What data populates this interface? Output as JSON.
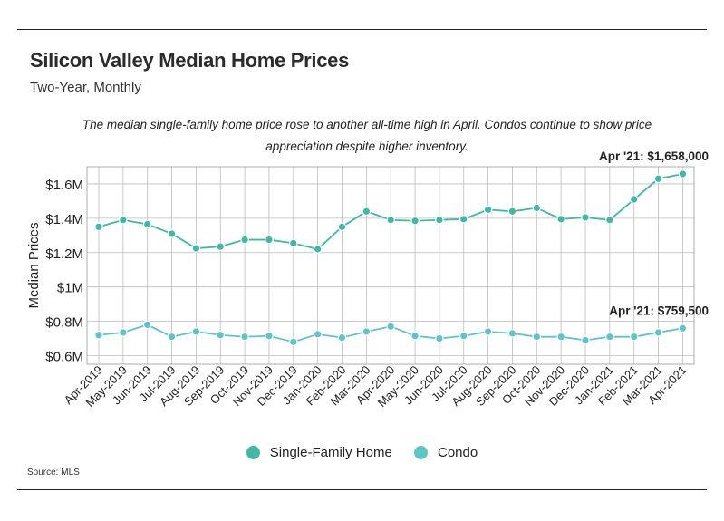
{
  "header": {
    "title": "Silicon Valley Median Home Prices",
    "subtitle": "Two-Year, Monthly",
    "annotation": "The median single-family home price rose to another all-time high in April. Condos continue to show price appreciation despite higher inventory."
  },
  "source": "Source:  MLS",
  "chart_data": {
    "type": "line",
    "title": "Silicon Valley Median Home Prices",
    "xlabel": "",
    "ylabel": "Median Prices",
    "ylim": [
      550000,
      1700000
    ],
    "yticks": [
      600000,
      800000,
      1000000,
      1200000,
      1400000,
      1600000
    ],
    "ytick_labels": [
      "$0.6M",
      "$0.8M",
      "$1M",
      "$1.2M",
      "$1.4M",
      "$1.6M"
    ],
    "grid": true,
    "legend_position": "bottom",
    "categories": [
      "Apr-2019",
      "May-2019",
      "Jun-2019",
      "Jul-2019",
      "Aug-2019",
      "Sep-2019",
      "Oct-2019",
      "Nov-2019",
      "Dec-2019",
      "Jan-2020",
      "Feb-2020",
      "Mar-2020",
      "Apr-2020",
      "May-2020",
      "Jun-2020",
      "Jul-2020",
      "Aug-2020",
      "Sep-2020",
      "Oct-2020",
      "Nov-2020",
      "Dec-2020",
      "Jan-2021",
      "Feb-2021",
      "Mar-2021",
      "Apr-2021"
    ],
    "series": [
      {
        "name": "Single-Family Home",
        "color": "#3fb8a4",
        "values": [
          1350000,
          1390000,
          1365000,
          1310000,
          1225000,
          1235000,
          1275000,
          1275000,
          1255000,
          1220000,
          1350000,
          1440000,
          1390000,
          1385000,
          1390000,
          1395000,
          1450000,
          1440000,
          1460000,
          1395000,
          1405000,
          1390000,
          1510000,
          1630000,
          1658000
        ]
      },
      {
        "name": "Condo",
        "color": "#5ec4c8",
        "values": [
          720000,
          735000,
          780000,
          710000,
          740000,
          720000,
          710000,
          715000,
          680000,
          725000,
          705000,
          740000,
          770000,
          715000,
          700000,
          715000,
          740000,
          730000,
          710000,
          710000,
          690000,
          710000,
          710000,
          735000,
          759500
        ]
      }
    ],
    "annotations": [
      {
        "series": "Single-Family Home",
        "index": 24,
        "text": "Apr '21: $1,658,000"
      },
      {
        "series": "Condo",
        "index": 24,
        "text": "Apr '21: $759,500"
      }
    ]
  }
}
